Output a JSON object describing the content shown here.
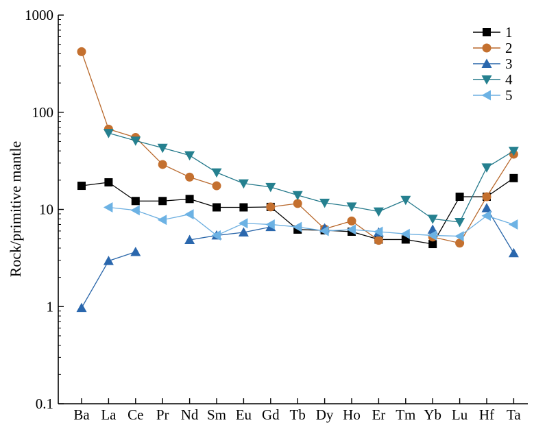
{
  "chart_data": {
    "type": "line",
    "title": "",
    "xlabel": "",
    "ylabel": "Rock/primitive mantle",
    "yscale": "log",
    "ylim": [
      0.1,
      1000
    ],
    "yticks": [
      "0.1",
      "1",
      "10",
      "100",
      "1000"
    ],
    "grid": false,
    "legend_position": "top-right",
    "categories": [
      "Ba",
      "La",
      "Ce",
      "Pr",
      "Nd",
      "Sm",
      "Eu",
      "Gd",
      "Tb",
      "Dy",
      "Ho",
      "Er",
      "Tm",
      "Yb",
      "Lu",
      "Hf",
      "Ta"
    ],
    "series": [
      {
        "name": "1",
        "marker": "square",
        "line_color": "#000000",
        "marker_color": "#000000",
        "values": [
          17.5,
          19,
          12.2,
          12.2,
          12.8,
          10.5,
          10.5,
          10.6,
          6.2,
          6.1,
          5.9,
          4.9,
          4.9,
          4.4,
          13.5,
          13.5,
          21
        ]
      },
      {
        "name": "2",
        "marker": "circle",
        "line_color": "#b8672a",
        "marker_color": "#c4702f",
        "values": [
          420,
          67,
          55,
          29,
          21.5,
          17.5,
          null,
          10.6,
          11.5,
          6.3,
          7.6,
          4.8,
          null,
          5.2,
          4.5,
          13.5,
          37
        ]
      },
      {
        "name": "3",
        "marker": "triangle-up",
        "line_color": "#2764a8",
        "marker_color": "#2a67ad",
        "values": [
          0.97,
          2.95,
          3.65,
          null,
          4.85,
          5.4,
          5.8,
          6.6,
          null,
          6.4,
          null,
          5.8,
          null,
          6.2,
          null,
          10.3,
          3.55
        ]
      },
      {
        "name": "4",
        "marker": "triangle-down",
        "line_color": "#23788a",
        "marker_color": "#25808f",
        "values": [
          null,
          61,
          51,
          43,
          36,
          24,
          18.5,
          17,
          14,
          11.7,
          10.7,
          9.5,
          12.5,
          8,
          7.4,
          27,
          40
        ]
      },
      {
        "name": "5",
        "marker": "triangle-left",
        "line_color": "#6baee0",
        "marker_color": "#6cb2e4",
        "values": [
          null,
          10.5,
          9.8,
          7.8,
          8.9,
          5.4,
          7.2,
          7,
          6.6,
          6,
          6.2,
          5.9,
          5.6,
          5.4,
          5.3,
          8.6,
          7
        ]
      }
    ]
  }
}
